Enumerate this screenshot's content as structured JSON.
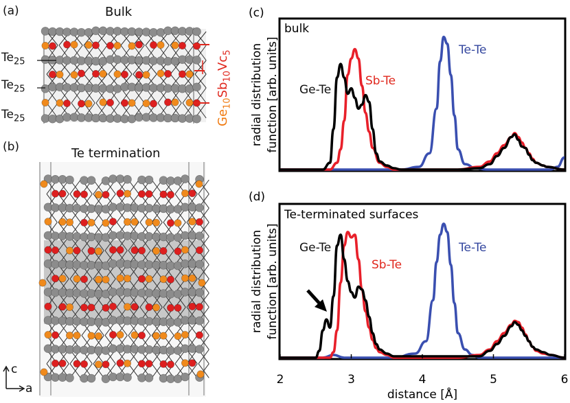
{
  "panels": {
    "a": {
      "label": "(a)",
      "title": "Bulk",
      "te_labels": [
        {
          "base": "Te",
          "sub": "25"
        },
        {
          "base": "Te",
          "sub": "25"
        },
        {
          "base": "Te",
          "sub": "25"
        }
      ],
      "composition": [
        {
          "text": "Ge",
          "color": "#f07a10"
        },
        {
          "text": "10",
          "color": "#f07a10",
          "sub": true
        },
        {
          "text": "Sb",
          "color": "#e0281e"
        },
        {
          "text": "10",
          "color": "#e0281e",
          "sub": true
        },
        {
          "text": "Vc",
          "color": "#e0281e"
        },
        {
          "text": "5",
          "color": "#e0281e",
          "sub": true
        }
      ]
    },
    "b": {
      "label": "(b)",
      "title": "Te termination",
      "axes": {
        "c": "c",
        "a": "a"
      }
    }
  },
  "colors": {
    "Te_atom": "#8c8c8c",
    "Ge_atom": "#f08a1c",
    "Sb_atom": "#dd1f1f",
    "bond": "#333333",
    "Ge_Te": "#000000",
    "Sb_Te": "#e8202a",
    "Te_Te": "#3a4fb0",
    "arrow": "#000000"
  },
  "chart_data": [
    {
      "panel": "(c)",
      "type": "line",
      "annotation": "bulk",
      "ylabel_lines": [
        "radial distribution",
        "function [arb. units]"
      ],
      "xlim": [
        2,
        6
      ],
      "ylim": [
        0,
        1.05
      ],
      "series": [
        {
          "name": "Ge-Te",
          "color": "#000000",
          "x": [
            2.0,
            2.6,
            2.7,
            2.75,
            2.8,
            2.85,
            2.9,
            2.95,
            3.0,
            3.05,
            3.1,
            3.15,
            3.2,
            3.25,
            3.3,
            3.35,
            3.4,
            3.5,
            3.6,
            3.7,
            4.5,
            4.8,
            4.95,
            5.05,
            5.15,
            5.25,
            5.3,
            5.35,
            5.4,
            5.45,
            5.5,
            5.55,
            5.6,
            5.7,
            5.75,
            6.0
          ],
          "y": [
            0.0,
            0.0,
            0.05,
            0.3,
            0.68,
            0.78,
            0.68,
            0.56,
            0.6,
            0.53,
            0.45,
            0.48,
            0.55,
            0.5,
            0.3,
            0.12,
            0.06,
            0.03,
            0.01,
            0.0,
            0.0,
            0.01,
            0.04,
            0.1,
            0.16,
            0.24,
            0.26,
            0.22,
            0.17,
            0.16,
            0.11,
            0.07,
            0.05,
            0.03,
            0.02,
            0.0
          ]
        },
        {
          "name": "Sb-Te",
          "color": "#e8202a",
          "x": [
            2.0,
            2.7,
            2.8,
            2.85,
            2.9,
            2.95,
            3.0,
            3.05,
            3.1,
            3.15,
            3.2,
            3.25,
            3.3,
            3.4,
            3.5,
            3.6,
            4.5,
            4.8,
            4.95,
            5.05,
            5.15,
            5.25,
            5.3,
            5.35,
            5.4,
            5.45,
            5.5,
            5.55,
            5.6,
            5.7,
            5.75,
            6.0
          ],
          "y": [
            0.0,
            0.0,
            0.05,
            0.15,
            0.36,
            0.7,
            0.82,
            0.89,
            0.82,
            0.62,
            0.42,
            0.28,
            0.16,
            0.05,
            0.02,
            0.0,
            0.0,
            0.02,
            0.06,
            0.12,
            0.18,
            0.24,
            0.27,
            0.24,
            0.2,
            0.16,
            0.12,
            0.08,
            0.05,
            0.03,
            0.02,
            0.0
          ]
        },
        {
          "name": "Te-Te",
          "color": "#3a4fb0",
          "x": [
            2.0,
            3.7,
            3.95,
            4.1,
            4.2,
            4.25,
            4.3,
            4.35,
            4.4,
            4.45,
            4.5,
            4.6,
            4.75,
            4.9,
            5.0,
            5.1,
            5.2,
            5.3,
            5.4,
            5.5,
            5.6,
            5.7,
            5.8,
            5.9,
            6.0
          ],
          "y": [
            0.0,
            0.0,
            0.02,
            0.12,
            0.45,
            0.8,
            0.98,
            0.93,
            0.7,
            0.4,
            0.15,
            0.04,
            0.01,
            0.0,
            0.0,
            0.0,
            0.0,
            0.0,
            0.0,
            0.0,
            0.0,
            0.0,
            0.0,
            0.02,
            0.09
          ]
        }
      ]
    },
    {
      "panel": "(d)",
      "type": "line",
      "annotation": "Te-terminated surfaces",
      "ylabel_lines": [
        "radial distribution",
        "function [arb. units]"
      ],
      "xlabel": "distance [Å]",
      "xlim": [
        2,
        6
      ],
      "xticks": [
        2,
        3,
        4,
        5,
        6
      ],
      "ylim": [
        0,
        1.05
      ],
      "series": [
        {
          "name": "Ge-Te",
          "color": "#000000",
          "x": [
            2.0,
            2.5,
            2.55,
            2.6,
            2.65,
            2.7,
            2.75,
            2.8,
            2.85,
            2.9,
            2.95,
            3.0,
            3.05,
            3.1,
            3.15,
            3.2,
            3.25,
            3.3,
            3.35,
            3.4,
            3.5,
            3.6,
            4.0,
            4.5,
            4.8,
            4.95,
            5.05,
            5.15,
            5.25,
            5.3,
            5.35,
            5.4,
            5.45,
            5.5,
            5.55,
            5.6,
            5.7,
            5.8,
            6.0
          ],
          "y": [
            0.0,
            0.0,
            0.05,
            0.2,
            0.28,
            0.22,
            0.45,
            0.82,
            0.9,
            0.72,
            0.56,
            0.48,
            0.44,
            0.52,
            0.5,
            0.42,
            0.3,
            0.18,
            0.1,
            0.06,
            0.03,
            0.01,
            0.01,
            0.01,
            0.01,
            0.05,
            0.1,
            0.16,
            0.23,
            0.26,
            0.24,
            0.2,
            0.16,
            0.12,
            0.08,
            0.06,
            0.04,
            0.02,
            0.0
          ]
        },
        {
          "name": "Sb-Te",
          "color": "#e8202a",
          "x": [
            2.0,
            2.7,
            2.75,
            2.8,
            2.85,
            2.9,
            2.95,
            3.0,
            3.05,
            3.1,
            3.15,
            3.2,
            3.25,
            3.3,
            3.35,
            3.4,
            3.5,
            3.6,
            4.5,
            4.8,
            4.95,
            5.05,
            5.15,
            5.25,
            5.3,
            5.35,
            5.4,
            5.45,
            5.5,
            5.55,
            5.6,
            5.7,
            5.8,
            6.0
          ],
          "y": [
            0.0,
            0.0,
            0.04,
            0.2,
            0.55,
            0.82,
            0.92,
            0.88,
            0.9,
            0.72,
            0.5,
            0.34,
            0.22,
            0.13,
            0.07,
            0.04,
            0.02,
            0.0,
            0.0,
            0.02,
            0.06,
            0.12,
            0.18,
            0.24,
            0.27,
            0.26,
            0.22,
            0.17,
            0.12,
            0.08,
            0.05,
            0.03,
            0.02,
            0.0
          ]
        },
        {
          "name": "Te-Te",
          "color": "#3a4fb0",
          "x": [
            2.0,
            2.6,
            2.75,
            2.9,
            3.0,
            3.6,
            3.9,
            4.05,
            4.15,
            4.2,
            4.25,
            4.3,
            4.35,
            4.4,
            4.45,
            4.5,
            4.6,
            4.7,
            4.8,
            5.0,
            5.5,
            6.0
          ],
          "y": [
            0.0,
            0.0,
            0.02,
            0.0,
            0.0,
            0.0,
            0.03,
            0.12,
            0.42,
            0.7,
            0.9,
            0.98,
            0.92,
            0.68,
            0.4,
            0.18,
            0.06,
            0.02,
            0.0,
            0.0,
            0.0,
            0.0
          ]
        }
      ]
    }
  ]
}
